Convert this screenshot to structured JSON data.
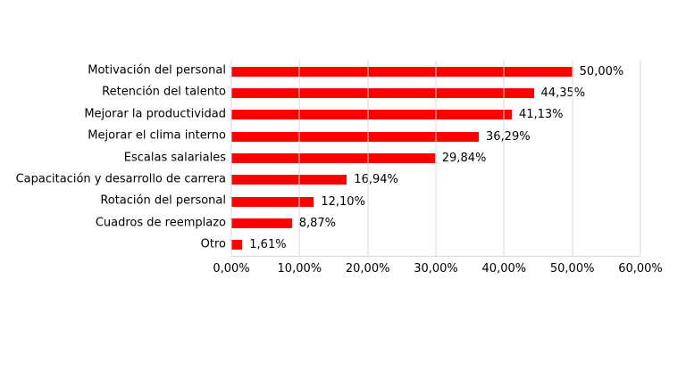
{
  "chart_data": {
    "type": "bar",
    "orientation": "horizontal",
    "title": "",
    "xlabel": "",
    "ylabel": "",
    "categories": [
      "Motivación del personal",
      "Retención del talento",
      "Mejorar la productividad",
      "Mejorar el clima interno",
      "Escalas salariales",
      "Capacitación y desarrollo de carrera",
      "Rotación del personal",
      "Cuadros de reemplazo",
      "Otro"
    ],
    "values": [
      50.0,
      44.35,
      41.13,
      36.29,
      29.84,
      16.94,
      12.1,
      8.87,
      1.61
    ],
    "value_labels": [
      "50,00%",
      "44,35%",
      "41,13%",
      "36,29%",
      "29,84%",
      "16,94%",
      "12,10%",
      "8,87%",
      "1,61%"
    ],
    "x_tick_values": [
      0,
      10,
      20,
      30,
      40,
      50,
      60
    ],
    "x_tick_labels": [
      "0,00%",
      "10,00%",
      "20,00%",
      "30,00%",
      "40,00%",
      "50,00%",
      "60,00%"
    ],
    "xlim": [
      0,
      60
    ],
    "grid": "vertical",
    "legend": "none",
    "colors": {
      "bar": "#fe0000",
      "gridline": "#d9d9d9",
      "axis": "#d9d9d9",
      "text": "#000000",
      "background": "#ffffff"
    }
  }
}
